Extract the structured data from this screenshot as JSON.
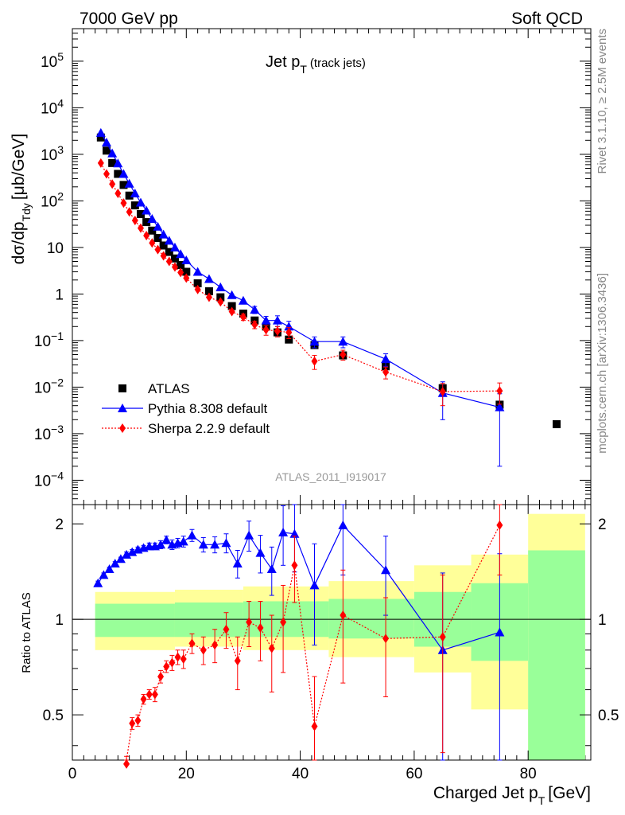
{
  "header": {
    "left": "7000 GeV pp",
    "right": "Soft QCD"
  },
  "side": {
    "rivet": "Rivet 3.1.10, ≥ 2.5M events",
    "mcplots": "mcplots.cern.ch [arXiv:1306.3436]"
  },
  "chart_data": {
    "type": "scatter",
    "title": "Jet p_T (track jets)",
    "analysis_id": "ATLAS_2011_I919017",
    "xlabel": "Charged Jet p_T [GeV]",
    "xlim": [
      0,
      91
    ],
    "xticks": [
      "0",
      "20",
      "40",
      "60",
      "80"
    ],
    "main": {
      "ylabel": "dσ/dp_Tdy [μb/GeV]",
      "yscale": "log",
      "ylim": [
        3e-05,
        500000
      ],
      "yticks": [
        "10^-4",
        "10^-3",
        "10^-2",
        "10^-1",
        "1",
        "10",
        "10^2",
        "10^3",
        "10^4",
        "10^5"
      ],
      "legend_position": "lower-left",
      "series": [
        {
          "name": "ATLAS",
          "color": "#000000",
          "marker": "square",
          "x": [
            5,
            6,
            7,
            8,
            9,
            10,
            11,
            12,
            13,
            14,
            15,
            16,
            17,
            18,
            19,
            20,
            22,
            24,
            26,
            28,
            30,
            32,
            34,
            36,
            38,
            42.5,
            47.5,
            55,
            65,
            75,
            85
          ],
          "y": [
            2300,
            1200,
            650,
            380,
            220,
            130,
            80,
            52,
            35,
            23,
            16,
            11,
            8,
            5.8,
            4.2,
            3.0,
            1.7,
            1.15,
            0.85,
            0.55,
            0.38,
            0.27,
            0.2,
            0.15,
            0.105,
            0.08,
            0.048,
            0.028,
            0.0095,
            0.0042,
            0.0016
          ]
        },
        {
          "name": "Pythia 8.308 default",
          "color": "#0000ff",
          "marker": "triangle",
          "line": "solid",
          "x": [
            5,
            6,
            7,
            8,
            9,
            10,
            11,
            12,
            13,
            14,
            15,
            16,
            17,
            18,
            19,
            20,
            22,
            24,
            26,
            28,
            30,
            32,
            34,
            36,
            38,
            42.5,
            47.5,
            55,
            65,
            75
          ],
          "y": [
            2900,
            1800,
            1050,
            640,
            380,
            235,
            145,
            92,
            62,
            41,
            28,
            19,
            14,
            10,
            7.2,
            5.3,
            3.0,
            2.1,
            1.4,
            0.95,
            0.72,
            0.46,
            0.27,
            0.27,
            0.2,
            0.095,
            0.095,
            0.04,
            0.0075,
            0.0037
          ],
          "yerr": [
            0,
            0,
            0,
            0,
            0,
            0,
            0,
            0,
            0,
            0,
            0,
            0,
            0,
            0,
            0,
            0,
            0,
            0,
            0,
            0,
            0,
            0.08,
            0.06,
            0.07,
            0.06,
            0.025,
            0.025,
            0.012,
            0.0055,
            0.0035
          ]
        },
        {
          "name": "Sherpa 2.2.9 default",
          "color": "#ff0000",
          "marker": "diamond",
          "line": "dotted",
          "x": [
            5,
            6,
            7,
            8,
            9,
            10,
            11,
            12,
            13,
            14,
            15,
            16,
            17,
            18,
            19,
            20,
            22,
            24,
            26,
            28,
            30,
            32,
            34,
            36,
            38,
            42.5,
            47.5,
            55,
            65,
            75
          ],
          "y": [
            650,
            380,
            230,
            145,
            90,
            58,
            38,
            26,
            18,
            12.5,
            9,
            6.6,
            5,
            3.8,
            2.9,
            2.2,
            1.25,
            0.85,
            0.68,
            0.42,
            0.32,
            0.22,
            0.17,
            0.16,
            0.15,
            0.036,
            0.05,
            0.021,
            0.008,
            0.0083
          ],
          "yerr": [
            0,
            0,
            0,
            0,
            0,
            0,
            0,
            0,
            0,
            0,
            0,
            0,
            0,
            0,
            0,
            0,
            0,
            0,
            0,
            0,
            0.05,
            0.04,
            0.04,
            0.04,
            0.04,
            0.012,
            0.012,
            0.006,
            0.004,
            0.004
          ]
        }
      ]
    },
    "ratio": {
      "ylabel": "Ratio to ATLAS",
      "ylim": [
        0.36,
        2.3
      ],
      "yticks": [
        "0.5",
        "1",
        "2"
      ],
      "reference_line": 1,
      "band_colors": {
        "inner": "#99ff99",
        "outer": "#ffff99"
      },
      "bands": [
        {
          "x0": 4,
          "x1": 18,
          "inner": [
            0.88,
            1.12
          ],
          "outer": [
            0.8,
            1.22
          ]
        },
        {
          "x0": 18,
          "x1": 30,
          "inner": [
            0.88,
            1.13
          ],
          "outer": [
            0.82,
            1.24
          ]
        },
        {
          "x0": 30,
          "x1": 45,
          "inner": [
            0.88,
            1.14
          ],
          "outer": [
            0.8,
            1.27
          ]
        },
        {
          "x0": 45,
          "x1": 60,
          "inner": [
            0.87,
            1.16
          ],
          "outer": [
            0.76,
            1.32
          ]
        },
        {
          "x0": 60,
          "x1": 70,
          "inner": [
            0.82,
            1.22
          ],
          "outer": [
            0.68,
            1.48
          ]
        },
        {
          "x0": 70,
          "x1": 80,
          "inner": [
            0.74,
            1.3
          ],
          "outer": [
            0.52,
            1.6
          ]
        },
        {
          "x0": 80,
          "x1": 90,
          "inner": [
            0.36,
            1.65
          ],
          "outer": [
            0.36,
            2.15
          ]
        }
      ],
      "series": [
        {
          "name": "Pythia 8.308 default",
          "color": "#0000ff",
          "x": [
            4.5,
            5.5,
            6.5,
            7.5,
            8.5,
            9.5,
            10.5,
            11.5,
            12.5,
            13.5,
            14.5,
            15.5,
            16.5,
            17.5,
            18.5,
            19.5,
            21,
            23,
            25,
            27,
            29,
            31,
            33,
            35,
            37,
            39,
            42.5,
            47.5,
            55,
            65,
            75
          ],
          "y": [
            1.3,
            1.38,
            1.44,
            1.5,
            1.55,
            1.6,
            1.63,
            1.66,
            1.68,
            1.7,
            1.7,
            1.72,
            1.78,
            1.72,
            1.74,
            1.76,
            1.84,
            1.72,
            1.72,
            1.74,
            1.5,
            1.84,
            1.62,
            1.44,
            1.88,
            1.86,
            1.28,
            1.98,
            1.43,
            0.8,
            0.91
          ],
          "yerr": [
            0.02,
            0.02,
            0.02,
            0.02,
            0.02,
            0.03,
            0.03,
            0.03,
            0.03,
            0.04,
            0.04,
            0.05,
            0.05,
            0.06,
            0.06,
            0.07,
            0.08,
            0.09,
            0.1,
            0.12,
            0.15,
            0.2,
            0.22,
            0.25,
            0.4,
            0.45,
            0.45,
            0.6,
            0.4,
            0.6,
            0.7
          ]
        },
        {
          "name": "Sherpa 2.2.9 default",
          "color": "#ff0000",
          "x": [
            9.5,
            10.5,
            11.5,
            12.5,
            13.5,
            14.5,
            15.5,
            16.5,
            17.5,
            18.5,
            19.5,
            21,
            23,
            25,
            27,
            29,
            31,
            33,
            35,
            37,
            39,
            42.5,
            47.5,
            55,
            65,
            75
          ],
          "y": [
            0.35,
            0.47,
            0.48,
            0.56,
            0.58,
            0.58,
            0.66,
            0.71,
            0.73,
            0.76,
            0.75,
            0.84,
            0.8,
            0.83,
            0.93,
            0.74,
            0.98,
            0.94,
            0.81,
            0.98,
            1.48,
            0.46,
            1.03,
            0.87,
            0.88,
            1.98
          ],
          "yerr": [
            0.02,
            0.02,
            0.02,
            0.02,
            0.02,
            0.03,
            0.03,
            0.03,
            0.04,
            0.04,
            0.05,
            0.06,
            0.08,
            0.1,
            0.12,
            0.14,
            0.16,
            0.2,
            0.22,
            0.3,
            0.35,
            0.2,
            0.4,
            0.3,
            0.5,
            0.6
          ]
        }
      ]
    }
  }
}
